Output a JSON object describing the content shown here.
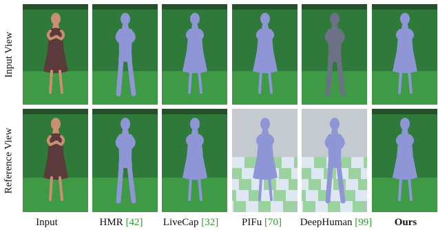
{
  "rows": [
    {
      "id": "input-view",
      "label": "Input View"
    },
    {
      "id": "reference-view",
      "label": "Reference View"
    }
  ],
  "columns": [
    {
      "id": "input",
      "name": "Input",
      "ref": "",
      "bold": false
    },
    {
      "id": "hmr",
      "name": "HMR ",
      "ref": "[42]",
      "bold": false
    },
    {
      "id": "livecap",
      "name": "LiveCap ",
      "ref": "[32]",
      "bold": false
    },
    {
      "id": "pifu",
      "name": "PIFu ",
      "ref": "[70]",
      "bold": false
    },
    {
      "id": "deephuman",
      "name": "DeepHuman ",
      "ref": "[99]",
      "bold": false
    },
    {
      "id": "ours",
      "name": "Ours",
      "ref": "",
      "bold": true
    }
  ],
  "colors": {
    "green_screen": "#2f7a3a",
    "floor": "#3f9a45",
    "mesh": "#8f96d6",
    "checker_light": "#dfe8f2",
    "checker_green": "#9bd3a0",
    "dress": "#5a3a3a",
    "skin": "#c89070",
    "citation": "#2e9a2e"
  }
}
